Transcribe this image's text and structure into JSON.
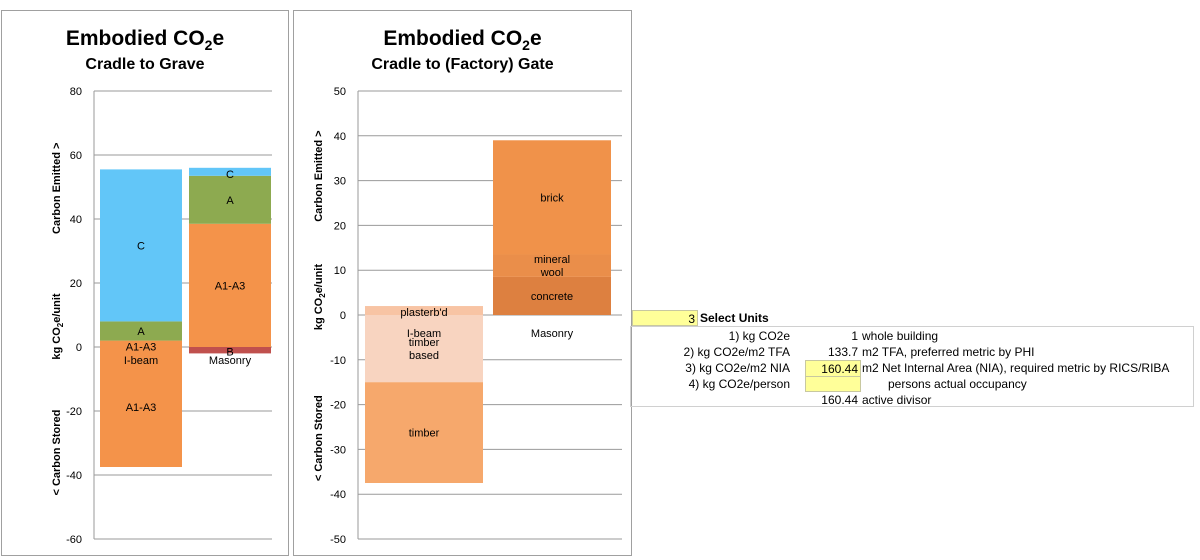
{
  "chart_data": [
    {
      "type": "bar",
      "stacked": true,
      "title": "Embodied CO2e",
      "subtitle": "Cradle to Grave",
      "ylabel": "kg CO2e/unit",
      "ylabel_up": "Carbon Emitted >",
      "ylabel_down": "< Carbon Stored",
      "ylim": [
        -60,
        80
      ],
      "yticks": [
        -60,
        -40,
        -20,
        0,
        20,
        40,
        60,
        80
      ],
      "grid": true,
      "categories": [
        "I-beam",
        "Masonry"
      ],
      "series": [
        {
          "label": "A1-A3",
          "color": "#f4934a",
          "values": [
            -37.5,
            0
          ]
        },
        {
          "label": "A1-A3",
          "color": "#f4934a",
          "values": [
            2,
            38.5
          ]
        },
        {
          "label": "A",
          "color": "#8daa50",
          "values": [
            6,
            15
          ]
        },
        {
          "label": "C",
          "color": "#62c6f8",
          "values": [
            47.5,
            2.5
          ]
        },
        {
          "label": "B",
          "color": "#c0504d",
          "values": [
            0,
            -2
          ]
        }
      ]
    },
    {
      "type": "bar",
      "stacked": true,
      "title": "Embodied CO2e",
      "subtitle": "Cradle to (Factory) Gate",
      "ylabel": "kg CO2e/unit",
      "ylabel_up": "Carbon Emitted >",
      "ylabel_down": "< Carbon Stored",
      "ylim": [
        -50,
        50
      ],
      "yticks": [
        -50,
        -40,
        -30,
        -20,
        -10,
        0,
        10,
        20,
        30,
        40,
        50
      ],
      "grid": true,
      "categories": [
        "",
        "Masonry"
      ],
      "series": [
        {
          "label": "timber based",
          "color": "#f8d4c0",
          "values": [
            -15,
            0
          ]
        },
        {
          "label": "timber",
          "color": "#f6a86c",
          "values": [
            -22.5,
            0
          ]
        },
        {
          "label": "I-beam",
          "color": "#f6a86c",
          "values": [
            0,
            0
          ]
        },
        {
          "label": "plasterb'd",
          "color": "#f8c4a4",
          "values": [
            2,
            0
          ]
        },
        {
          "label": "concrete",
          "color": "#dd8040",
          "values": [
            0,
            8.5
          ]
        },
        {
          "label": "mineral wool",
          "color": "#ea8e4a",
          "values": [
            0,
            5
          ]
        },
        {
          "label": "brick",
          "color": "#f0924a",
          "values": [
            0,
            25.5
          ]
        }
      ]
    }
  ],
  "units_panel": {
    "selected": "3",
    "title": "Select Units",
    "rows": [
      {
        "option": "1) kg CO2e",
        "value": "1",
        "desc": "whole building"
      },
      {
        "option": "2) kg CO2e/m2 TFA",
        "value": "133.7",
        "desc": "m2 TFA, preferred metric by PHI"
      },
      {
        "option": "3) kg CO2e/m2 NIA",
        "value": "160.44",
        "desc": "m2 Net Internal Area (NIA), required metric by RICS/RIBA"
      },
      {
        "option": "4) kg CO2e/person",
        "value": "",
        "desc": "persons actual occupancy"
      }
    ],
    "divisor_value": "160.44",
    "divisor_label": "active divisor"
  }
}
